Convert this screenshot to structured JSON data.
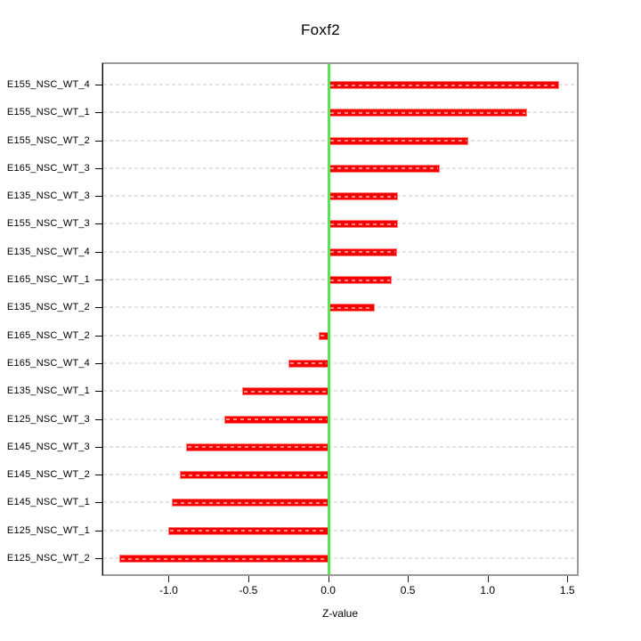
{
  "title": "Foxf2",
  "xlabel": "Z-value",
  "chart_data": {
    "type": "bar",
    "orientation": "horizontal",
    "title": "Foxf2",
    "xlabel": "Z-value",
    "ylabel": "",
    "grid": true,
    "zero_line": true,
    "xlim": [
      -1.41,
      1.56
    ],
    "xticks": [
      -1.0,
      -0.5,
      0.0,
      0.5,
      1.0,
      1.5
    ],
    "xtick_labels": [
      "-1.0",
      "-0.5",
      "0.0",
      "0.5",
      "1.0",
      "1.5"
    ],
    "categories": [
      "E155_NSC_WT_4",
      "E155_NSC_WT_1",
      "E155_NSC_WT_2",
      "E165_NSC_WT_3",
      "E135_NSC_WT_3",
      "E155_NSC_WT_3",
      "E135_NSC_WT_4",
      "E165_NSC_WT_1",
      "E135_NSC_WT_2",
      "E165_NSC_WT_2",
      "E165_NSC_WT_4",
      "E135_NSC_WT_1",
      "E125_NSC_WT_3",
      "E145_NSC_WT_3",
      "E145_NSC_WT_2",
      "E145_NSC_WT_1",
      "E125_NSC_WT_1",
      "E125_NSC_WT_2"
    ],
    "values": [
      1.45,
      1.25,
      0.88,
      0.7,
      0.44,
      0.44,
      0.43,
      0.4,
      0.29,
      -0.06,
      -0.25,
      -0.54,
      -0.65,
      -0.89,
      -0.93,
      -0.98,
      -1.0,
      -1.31
    ],
    "colors": {
      "bar": "#f90000",
      "bar_edge": "#ff7d7d",
      "zero_line": "#55e655",
      "gridline": "#e3e3e3",
      "box": "#9b9b9b",
      "axis": "#000000"
    }
  }
}
